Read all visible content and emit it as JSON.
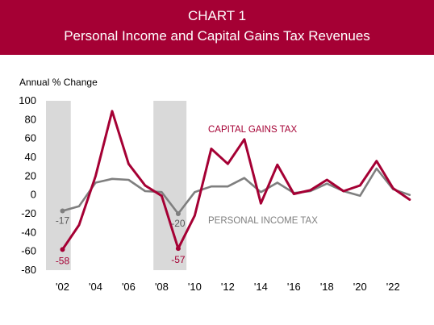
{
  "header": {
    "title_line1": "CHART 1",
    "title_line2": "Personal Income and Capital Gains Tax Revenues"
  },
  "chart_data": {
    "type": "line",
    "ylabel": "Annual % Change",
    "ylim": [
      -80,
      100
    ],
    "y_ticks": [
      100,
      80,
      60,
      40,
      20,
      0,
      -20,
      -40,
      -60,
      -80
    ],
    "xlim": [
      2001,
      2023.5
    ],
    "x_ticks": [
      {
        "year": 2002,
        "label": "'02"
      },
      {
        "year": 2004,
        "label": "'04"
      },
      {
        "year": 2006,
        "label": "'06"
      },
      {
        "year": 2008,
        "label": "'08"
      },
      {
        "year": 2010,
        "label": "'10"
      },
      {
        "year": 2012,
        "label": "'12"
      },
      {
        "year": 2014,
        "label": "'14"
      },
      {
        "year": 2016,
        "label": "'16"
      },
      {
        "year": 2018,
        "label": "'18"
      },
      {
        "year": 2020,
        "label": "'20"
      },
      {
        "year": 2022,
        "label": "'22"
      }
    ],
    "shaded_ranges": [
      [
        2001,
        2002.5
      ],
      [
        2007.5,
        2009.5
      ]
    ],
    "x": [
      2002,
      2003,
      2004,
      2005,
      2006,
      2007,
      2008,
      2009,
      2010,
      2011,
      2012,
      2013,
      2014,
      2015,
      2016,
      2017,
      2018,
      2019,
      2020,
      2021,
      2022,
      2023
    ],
    "series": [
      {
        "name": "CAPITAL GAINS TAX",
        "color": "#a50034",
        "values": [
          -58,
          -32,
          20,
          89,
          33,
          10,
          -1,
          -57,
          -22,
          49,
          33,
          59,
          -9,
          32,
          1,
          5,
          16,
          4,
          10,
          36,
          7,
          -5
        ]
      },
      {
        "name": "PERSONAL INCOME TAX",
        "color": "#7f7f7f",
        "values": [
          -17,
          -12,
          13,
          17,
          16,
          4,
          3,
          -20,
          3,
          9,
          9,
          18,
          3,
          13,
          2,
          4,
          12,
          4,
          -1,
          28,
          6,
          0
        ]
      }
    ],
    "annotations": [
      {
        "text": "-17",
        "series": 1,
        "x": 2002
      },
      {
        "text": "-58",
        "series": 0,
        "x": 2002
      },
      {
        "text": "-20",
        "series": 1,
        "x": 2009
      },
      {
        "text": "-57",
        "series": 0,
        "x": 2009
      }
    ]
  }
}
